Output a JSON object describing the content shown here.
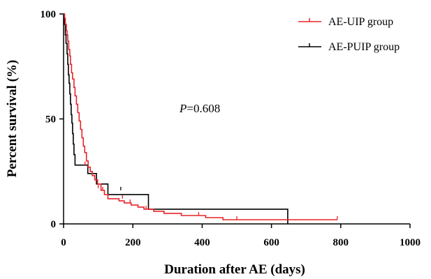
{
  "chart_data": {
    "type": "line",
    "xlabel": "Duration after AE (days)",
    "ylabel": "Percent survival (%)",
    "xlim": [
      0,
      1000
    ],
    "ylim": [
      0,
      100
    ],
    "x_ticks": [
      0,
      200,
      400,
      600,
      800,
      1000
    ],
    "y_ticks": [
      0,
      50,
      100
    ],
    "grid": false,
    "legend_position": "top-right",
    "annotation": {
      "italic": "P",
      "text": "=0.608"
    },
    "series": [
      {
        "name": "AE-UIP group",
        "color": "#e8232a",
        "step": true,
        "points": [
          [
            0,
            100
          ],
          [
            3,
            98
          ],
          [
            5,
            95
          ],
          [
            8,
            92
          ],
          [
            10,
            90
          ],
          [
            12,
            87
          ],
          [
            15,
            83
          ],
          [
            18,
            80
          ],
          [
            20,
            76
          ],
          [
            23,
            72
          ],
          [
            26,
            69
          ],
          [
            30,
            65
          ],
          [
            33,
            61
          ],
          [
            37,
            57
          ],
          [
            41,
            53
          ],
          [
            45,
            49
          ],
          [
            49,
            45
          ],
          [
            53,
            41
          ],
          [
            57,
            37
          ],
          [
            61,
            34
          ],
          [
            66,
            30
          ],
          [
            71,
            27
          ],
          [
            77,
            25
          ],
          [
            83,
            23
          ],
          [
            90,
            21
          ],
          [
            98,
            19
          ],
          [
            108,
            16
          ],
          [
            118,
            14
          ],
          [
            128,
            12
          ],
          [
            145,
            12
          ],
          [
            160,
            11
          ],
          [
            175,
            10
          ],
          [
            195,
            9
          ],
          [
            215,
            8
          ],
          [
            232,
            7
          ],
          [
            260,
            6
          ],
          [
            290,
            5
          ],
          [
            340,
            4
          ],
          [
            410,
            3
          ],
          [
            460,
            2
          ],
          [
            560,
            2
          ],
          [
            700,
            2
          ],
          [
            790,
            2
          ]
        ],
        "censored": [
          [
            62,
            28
          ],
          [
            100,
            17
          ],
          [
            113,
            16
          ],
          [
            170,
            12
          ],
          [
            192,
            10
          ],
          [
            238,
            7
          ],
          [
            390,
            4
          ],
          [
            500,
            2
          ],
          [
            790,
            2
          ]
        ]
      },
      {
        "name": "AE-PUIP group",
        "color": "#000000",
        "step": true,
        "points": [
          [
            0,
            100
          ],
          [
            2,
            95
          ],
          [
            5,
            90
          ],
          [
            7,
            86
          ],
          [
            10,
            81
          ],
          [
            12,
            76
          ],
          [
            14,
            71
          ],
          [
            16,
            67
          ],
          [
            18,
            62
          ],
          [
            20,
            57
          ],
          [
            22,
            52
          ],
          [
            24,
            48
          ],
          [
            26,
            43
          ],
          [
            28,
            38
          ],
          [
            30,
            33
          ],
          [
            33,
            28
          ],
          [
            65,
            28
          ],
          [
            70,
            24
          ],
          [
            90,
            24
          ],
          [
            95,
            19
          ],
          [
            125,
            19
          ],
          [
            128,
            14
          ],
          [
            243,
            14
          ],
          [
            245,
            7
          ],
          [
            645,
            7
          ],
          [
            647,
            0
          ]
        ],
        "censored": [
          [
            165,
            16
          ]
        ]
      }
    ]
  }
}
